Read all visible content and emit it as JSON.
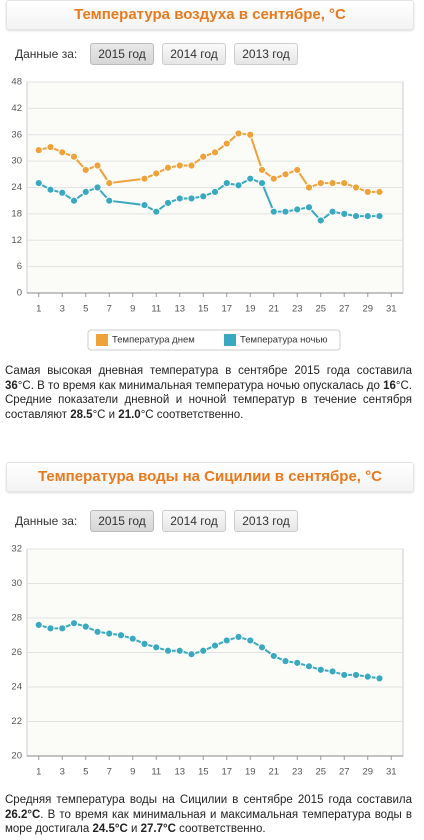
{
  "chart_data": [
    {
      "type": "line",
      "title": "Температура воздуха в сентябре, °C",
      "x": [
        1,
        2,
        3,
        4,
        5,
        6,
        7,
        10,
        11,
        12,
        13,
        14,
        15,
        16,
        17,
        18,
        19,
        20,
        21,
        22,
        23,
        24,
        25,
        26,
        27,
        28,
        29,
        30
      ],
      "series": [
        {
          "name": "Температура днем",
          "color": "#eda23a",
          "values": [
            32.5,
            33.2,
            32,
            31,
            28,
            29,
            25,
            26,
            27.2,
            28.5,
            29,
            29,
            31,
            32,
            34,
            36.3,
            36,
            28,
            26,
            27,
            28,
            24,
            25,
            25,
            25,
            24,
            23,
            23
          ]
        },
        {
          "name": "Температура ночью",
          "color": "#3aa9c0",
          "values": [
            25,
            23.5,
            22.8,
            21,
            23,
            24,
            21,
            20,
            18.5,
            20.5,
            21.5,
            21.5,
            22,
            23,
            25,
            24.5,
            26,
            25,
            18.5,
            18.5,
            19,
            19.5,
            16.5,
            18.5,
            18,
            17.5,
            17.5,
            17.5
          ]
        }
      ],
      "xlim": [
        0,
        32
      ],
      "xticks": [
        1,
        3,
        5,
        7,
        9,
        11,
        13,
        15,
        17,
        19,
        21,
        23,
        25,
        27,
        29,
        31
      ],
      "ylim": [
        0,
        48
      ],
      "yticks": [
        0,
        6,
        12,
        18,
        24,
        30,
        36,
        42,
        48
      ],
      "grid": true,
      "legend": "bottom"
    },
    {
      "type": "line",
      "title": "Температура воды на Сицилии в сентябре, °C",
      "x": [
        1,
        2,
        3,
        4,
        5,
        6,
        7,
        8,
        9,
        10,
        11,
        12,
        13,
        14,
        15,
        16,
        17,
        18,
        19,
        20,
        21,
        22,
        23,
        24,
        25,
        26,
        27,
        28,
        29,
        30
      ],
      "series": [
        {
          "color": "#3aa9c0",
          "values": [
            27.6,
            27.4,
            27.4,
            27.7,
            27.5,
            27.2,
            27.1,
            27.0,
            26.8,
            26.5,
            26.3,
            26.1,
            26.1,
            25.9,
            26.1,
            26.4,
            26.7,
            26.9,
            26.7,
            26.3,
            25.8,
            25.5,
            25.4,
            25.2,
            25.0,
            24.9,
            24.7,
            24.7,
            24.6,
            24.5
          ]
        }
      ],
      "xlim": [
        0,
        32
      ],
      "xticks": [
        1,
        3,
        5,
        7,
        9,
        11,
        13,
        15,
        17,
        19,
        21,
        23,
        25,
        27,
        29,
        31
      ],
      "ylim": [
        20,
        32
      ],
      "yticks": [
        20,
        22,
        24,
        26,
        28,
        30,
        32
      ],
      "grid": true
    }
  ],
  "sections": [
    {
      "period_label": "Данные за:",
      "buttons": [
        "2015 год",
        "2014 год",
        "2013 год"
      ],
      "text": [
        "Самая высокая дневная температура в сентябре 2015 года составила ",
        "36",
        "°C. В то время как минимальная температура ночью опускалась до ",
        "16",
        "°C. Средние показатели дневной и ночной температур в течение сентября составляют ",
        "28.5",
        "°C и ",
        "21.0",
        "°C соответственно."
      ]
    },
    {
      "period_label": "Данные за:",
      "buttons": [
        "2015 год",
        "2014 год",
        "2013 год"
      ],
      "text": [
        "Средняя температура воды на Сицилии в сентябре 2015 года составила ",
        "26.2°C",
        ". В то время как минимальная и максимальная температура воды в море достигала ",
        "24.5°C",
        " и ",
        "27.7°C",
        " соответственно."
      ]
    }
  ]
}
